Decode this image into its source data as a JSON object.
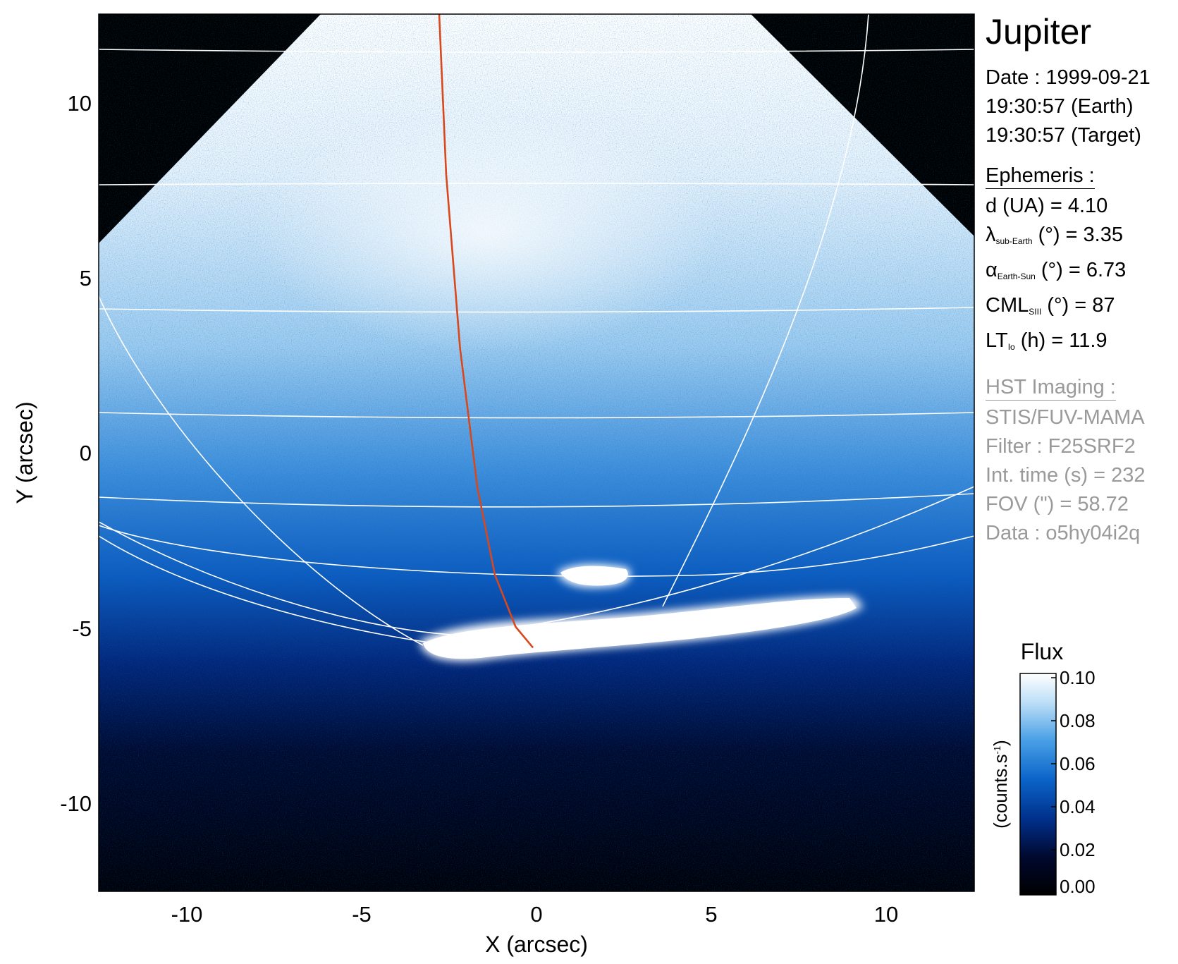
{
  "chart_data": {
    "type": "heatmap",
    "title": "Jupiter",
    "xlabel": "X (arcsec)",
    "ylabel": "Y (arcsec)",
    "xlim": [
      -12.6,
      12.6
    ],
    "ylim": [
      -12.6,
      12.6
    ],
    "x_ticks": [
      "-10",
      "-5",
      "0",
      "5",
      "10"
    ],
    "y_ticks": [
      "10",
      "5",
      "0",
      "-5",
      "-10"
    ],
    "x_tick_values": [
      -10,
      -5,
      0,
      5,
      10
    ],
    "y_tick_values": [
      10,
      5,
      0,
      -5,
      -10
    ],
    "colorbar": {
      "title": "Flux",
      "unit_label": "(counts.s",
      "unit_sup": "-1",
      "unit_close": ")",
      "range": [
        0.0,
        0.1
      ],
      "ticks": [
        "0.10",
        "0.08",
        "0.06",
        "0.04",
        "0.02",
        "0.00"
      ],
      "tick_values": [
        0.1,
        0.08,
        0.06,
        0.04,
        0.02,
        0.0
      ],
      "colors": [
        "#000000",
        "#00082e",
        "#002f8a",
        "#0a64c8",
        "#4aa0e6",
        "#b8dcf6",
        "#ffffff"
      ]
    },
    "footprint_trace": [
      [
        -2.8,
        12.6
      ],
      [
        -2.6,
        8
      ],
      [
        -2.2,
        3
      ],
      [
        -1.7,
        -1
      ],
      [
        -1.2,
        -3.5
      ],
      [
        -0.6,
        -5.0
      ],
      [
        -0.1,
        -5.6
      ]
    ],
    "trace_color": "#d8481c",
    "grid_color": "#ffffff"
  },
  "info": {
    "target": "Jupiter",
    "date_line": "Date : 1999-09-21",
    "time_earth": "19:30:57 (Earth)",
    "time_target": "19:30:57 (Target)",
    "ephemeris_title": "Ephemeris :",
    "eph_d": "d (UA)    = 4.10",
    "eph_lambda_sym": "λ",
    "eph_lambda_sub": "sub-Earth",
    "eph_lambda_val": " (°) = 3.35",
    "eph_alpha_sym": "α",
    "eph_alpha_sub": "Earth-Sun",
    "eph_alpha_val": " (°) = 6.73",
    "eph_cml_sym": "CML",
    "eph_cml_sub": "SIII",
    "eph_cml_val": " (°) = 87",
    "eph_lt_sym": "LT",
    "eph_lt_sub": "Io",
    "eph_lt_val": " (h) = 11.9",
    "hst_title": "HST Imaging :",
    "hst_instrument": "STIS/FUV-MAMA",
    "hst_filter": "Filter : F25SRF2",
    "hst_inttime": "Int. time (s) = 232",
    "hst_fov": "FOV (\") = 58.72",
    "hst_data": "Data : o5hy04i2q"
  }
}
